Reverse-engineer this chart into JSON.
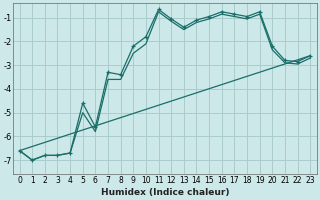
{
  "xlabel": "Humidex (Indice chaleur)",
  "bg_color": "#cce8e8",
  "grid_color": "#aacccc",
  "line_color": "#1a6e6a",
  "xlim": [
    -0.5,
    23.5
  ],
  "ylim": [
    -7.6,
    -0.4
  ],
  "xtick_labels": [
    "0",
    "1",
    "2",
    "3",
    "4",
    "5",
    "6",
    "7",
    "8",
    "9",
    "10",
    "11",
    "12",
    "13",
    "14",
    "15",
    "16",
    "17",
    "18",
    "19",
    "20",
    "21",
    "22",
    "23"
  ],
  "yticks": [
    -7,
    -6,
    -5,
    -4,
    -3,
    -2,
    -1
  ],
  "line1_x": [
    0,
    1,
    2,
    3,
    4,
    5,
    6,
    7,
    8,
    9,
    10,
    11,
    12,
    13,
    14,
    15,
    16,
    17,
    18,
    19,
    20,
    21,
    22,
    23
  ],
  "line1_y": [
    -6.6,
    -7.0,
    -6.8,
    -6.8,
    -6.7,
    -4.6,
    -5.6,
    -3.3,
    -3.4,
    -2.2,
    -1.8,
    -0.65,
    -1.05,
    -1.4,
    -1.1,
    -0.95,
    -0.75,
    -0.85,
    -0.95,
    -0.75,
    -2.2,
    -2.8,
    -2.85,
    -2.6
  ],
  "line2_x": [
    0,
    1,
    2,
    3,
    4,
    5,
    6,
    7,
    8,
    9,
    10,
    11,
    12,
    13,
    14,
    15,
    16,
    17,
    18,
    19,
    20,
    21,
    22,
    23
  ],
  "line2_y": [
    -6.6,
    -7.0,
    -6.8,
    -6.8,
    -6.7,
    -5.0,
    -5.8,
    -3.6,
    -3.6,
    -2.5,
    -2.1,
    -0.75,
    -1.15,
    -1.5,
    -1.2,
    -1.05,
    -0.85,
    -0.95,
    -1.05,
    -0.85,
    -2.35,
    -2.9,
    -2.95,
    -2.7
  ],
  "line3_x": [
    0,
    23
  ],
  "line3_y": [
    -6.6,
    -2.6
  ]
}
